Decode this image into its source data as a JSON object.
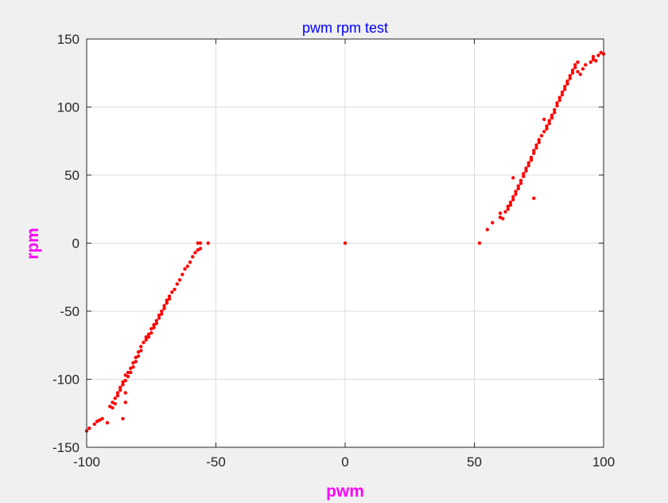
{
  "chart_data": {
    "type": "scatter",
    "title": "pwm rpm test",
    "xlabel": "pwm",
    "ylabel": "rpm",
    "xlim": [
      -100,
      100
    ],
    "ylim": [
      -150,
      150
    ],
    "xticks": [
      -100,
      -50,
      0,
      50,
      100
    ],
    "yticks": [
      -150,
      -100,
      -50,
      0,
      50,
      100,
      150
    ],
    "grid": true,
    "colors": {
      "marker": "#ff0000",
      "title": "#0000ff",
      "labels": "#ff00ff",
      "axes_bg": "#ffffff",
      "figure_bg": "#f0f0f0"
    },
    "series": [
      {
        "marker": "dot",
        "x": [
          -100,
          -99,
          -97,
          -96,
          -95,
          -94,
          -92,
          -91,
          -90,
          -90,
          -89,
          -89,
          -88,
          -88,
          -87,
          -87,
          -86,
          -86,
          -85,
          -85,
          -84,
          -84,
          -83,
          -83,
          -82,
          -82,
          -81,
          -81,
          -80,
          -80,
          -79,
          -79,
          -78,
          -77,
          -77,
          -76,
          -76,
          -75,
          -75,
          -74,
          -74,
          -73,
          -73,
          -72,
          -72,
          -71,
          -71,
          -70,
          -70,
          -69,
          -69,
          -68,
          -68,
          -67,
          -66,
          -65,
          -64,
          -63,
          -62,
          -61,
          -60,
          -59,
          -58,
          -57,
          -57,
          -56,
          -56,
          -53,
          -86,
          -85,
          -85,
          0,
          52,
          55,
          57,
          60,
          60,
          61,
          62,
          63,
          63,
          64,
          64,
          65,
          65,
          66,
          66,
          67,
          67,
          68,
          68,
          69,
          69,
          70,
          70,
          71,
          71,
          72,
          72,
          73,
          73,
          74,
          74,
          75,
          75,
          76,
          77,
          78,
          78,
          79,
          79,
          80,
          80,
          81,
          81,
          82,
          82,
          83,
          83,
          84,
          84,
          85,
          85,
          86,
          86,
          87,
          87,
          88,
          88,
          89,
          89,
          90,
          90,
          91,
          92,
          93,
          95,
          96,
          96,
          97,
          98,
          99,
          100,
          65,
          72,
          73,
          77
        ],
        "y": [
          -138,
          -136,
          -133,
          -131,
          -130,
          -129,
          -132,
          -120,
          -117,
          -121,
          -114,
          -118,
          -110,
          -112,
          -106,
          -108,
          -102,
          -104,
          -97,
          -101,
          -95,
          -98,
          -92,
          -95,
          -88,
          -91,
          -84,
          -87,
          -80,
          -83,
          -76,
          -79,
          -73,
          -69,
          -71,
          -67,
          -69,
          -63,
          -66,
          -60,
          -62,
          -57,
          -59,
          -53,
          -55,
          -50,
          -52,
          -46,
          -48,
          -42,
          -44,
          -39,
          -41,
          -36,
          -34,
          -30,
          -27,
          -23,
          -19,
          -17,
          -14,
          -10,
          -7,
          -5,
          0,
          -4,
          0,
          0,
          -129,
          -117,
          -110,
          0,
          0,
          10,
          15,
          19,
          22,
          18,
          23,
          25,
          27,
          28,
          30,
          32,
          34,
          36,
          38,
          40,
          42,
          44,
          46,
          49,
          51,
          53,
          55,
          57,
          59,
          61,
          63,
          66,
          68,
          70,
          72,
          74,
          76,
          79,
          82,
          84,
          86,
          88,
          90,
          92,
          94,
          96,
          98,
          101,
          103,
          105,
          107,
          109,
          111,
          113,
          115,
          117,
          119,
          121,
          123,
          125,
          127,
          129,
          131,
          133,
          126,
          124,
          128,
          131,
          133,
          135,
          137,
          134,
          138,
          140,
          139,
          48,
          62,
          33,
          91
        ]
      }
    ]
  }
}
